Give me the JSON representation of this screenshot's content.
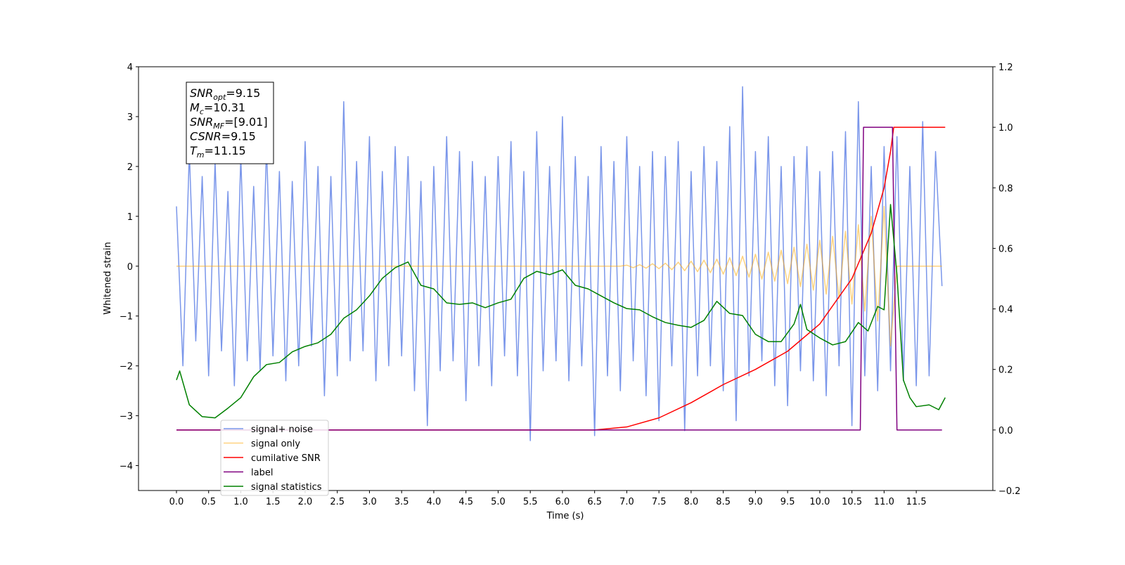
{
  "chart_data": {
    "type": "line",
    "x_label": "Time (s)",
    "y_label": "Whitened strain",
    "xlim": [
      -0.59,
      12.69
    ],
    "ylim": [
      -4.5,
      4
    ],
    "y2lim": [
      -0.2,
      1.2
    ],
    "xticks": [
      {
        "value": 0,
        "label": "0.0"
      },
      0.5,
      {
        "value": 1,
        "label": "1.0"
      },
      1.5,
      {
        "value": 2,
        "label": "2.0"
      },
      2.5,
      {
        "value": 3,
        "label": "3.0"
      },
      3.5,
      {
        "value": 4,
        "label": "4.0"
      },
      4.5,
      {
        "value": 5,
        "label": "5.0"
      },
      5.5,
      {
        "value": 6,
        "label": "6.0"
      },
      6.5,
      {
        "value": 7,
        "label": "7.0"
      },
      7.5,
      {
        "value": 8,
        "label": "8.0"
      },
      8.5,
      {
        "value": 9,
        "label": "9.0"
      },
      9.5,
      {
        "value": 10,
        "label": "10.0"
      },
      10.5,
      {
        "value": 11,
        "label": "11.0"
      },
      11.5
    ],
    "yticks": [
      {
        "value": -4,
        "label": "−4"
      },
      {
        "value": -3,
        "label": "−3"
      },
      {
        "value": -2,
        "label": "−2"
      },
      {
        "value": -1,
        "label": "−1"
      },
      0,
      1,
      2,
      3,
      4
    ],
    "y2ticks": [
      {
        "value": -0.2,
        "label": "−0.2"
      },
      {
        "value": 0,
        "label": "0.0"
      },
      0.2,
      0.4,
      0.6,
      0.8,
      {
        "value": 1,
        "label": "1.0"
      },
      1.2
    ],
    "legend_position": "lower left",
    "annotations": [
      {
        "symbol": "SNR",
        "sub": "opt",
        "text": "=9.15"
      },
      {
        "symbol": "M",
        "sub": "c",
        "text": "=10.31"
      },
      {
        "symbol": "SNR",
        "sub": "MF",
        "text": "=[9.01]"
      },
      {
        "symbol": "CSNR",
        "text": "=9.15"
      },
      {
        "symbol": "T",
        "sub": "m",
        "text": "=11.15"
      }
    ],
    "x": [
      0,
      0.1,
      0.2,
      0.3,
      0.4,
      0.5,
      0.6,
      0.7,
      0.8,
      0.9,
      1,
      1.1,
      1.2,
      1.3,
      1.4,
      1.5,
      1.6,
      1.7,
      1.8,
      1.9,
      2,
      2.1,
      2.2,
      2.3,
      2.4,
      2.5,
      2.6,
      2.7,
      2.8,
      2.9,
      3,
      3.1,
      3.2,
      3.3,
      3.4,
      3.5,
      3.6,
      3.7,
      3.8,
      3.9,
      4,
      4.1,
      4.2,
      4.3,
      4.4,
      4.5,
      4.6,
      4.7,
      4.8,
      4.9,
      5,
      5.1,
      5.2,
      5.3,
      5.4,
      5.5,
      5.6,
      5.7,
      5.8,
      5.9,
      6,
      6.1,
      6.2,
      6.3,
      6.4,
      6.5,
      6.6,
      6.7,
      6.8,
      6.9,
      7,
      7.1,
      7.2,
      7.3,
      7.4,
      7.5,
      7.6,
      7.7,
      7.8,
      7.9,
      8,
      8.1,
      8.2,
      8.3,
      8.4,
      8.5,
      8.6,
      8.7,
      8.8,
      8.9,
      9,
      9.1,
      9.2,
      9.3,
      9.4,
      9.5,
      9.6,
      9.7,
      9.8,
      9.9,
      10,
      10.1,
      10.2,
      10.3,
      10.4,
      10.5,
      10.6,
      10.7,
      10.8,
      10.9,
      11,
      11.1,
      11.2,
      11.3,
      11.4,
      11.5,
      11.6,
      11.7,
      11.8,
      11.9
    ],
    "series": [
      {
        "name": "signal+ noise",
        "color": "#4169e1",
        "alpha": 0.7,
        "values": [
          1.2,
          -2.0,
          2.3,
          -1.5,
          1.8,
          -2.2,
          2.1,
          -1.7,
          1.5,
          -2.4,
          2.2,
          -1.9,
          1.6,
          -2.1,
          2.4,
          -1.8,
          1.9,
          -2.3,
          1.7,
          -2.0,
          2.5,
          -1.6,
          2.0,
          -2.6,
          1.8,
          -2.2,
          3.3,
          -1.9,
          2.1,
          -1.7,
          2.6,
          -2.3,
          1.9,
          -2.0,
          2.4,
          -1.8,
          2.2,
          -2.5,
          1.7,
          -3.2,
          2.0,
          -2.1,
          2.6,
          -1.9,
          2.3,
          -2.7,
          2.1,
          -2.0,
          1.8,
          -2.4,
          2.2,
          -1.8,
          2.5,
          -2.2,
          1.9,
          -3.5,
          2.7,
          -2.1,
          2.0,
          -1.9,
          3.0,
          -2.3,
          2.2,
          -2.0,
          1.8,
          -3.4,
          2.4,
          -2.2,
          2.1,
          -2.5,
          2.6,
          -1.9,
          2.0,
          -2.6,
          2.3,
          -3.1,
          2.2,
          -2.0,
          2.5,
          -3.3,
          1.9,
          -2.2,
          2.4,
          -2.0,
          2.1,
          -2.5,
          2.8,
          -3.1,
          3.6,
          -2.2,
          2.3,
          -1.9,
          2.6,
          -2.4,
          2.0,
          -2.8,
          2.2,
          -2.1,
          2.4,
          -2.3,
          1.9,
          -2.6,
          2.3,
          -2.0,
          2.7,
          -3.2,
          3.3,
          -2.2,
          2.0,
          -2.5,
          2.4,
          -2.1,
          2.6,
          -2.3,
          2.0,
          -2.4,
          2.9,
          -2.2,
          2.3,
          -0.4
        ]
      },
      {
        "name": "signal only",
        "color": "#ffa500",
        "alpha": 0.5,
        "values": [
          0,
          0,
          0,
          0,
          0,
          0,
          0,
          0,
          0,
          0,
          0,
          0,
          0,
          0,
          0,
          0,
          0,
          0,
          0,
          0,
          0,
          0,
          0,
          0,
          0,
          0,
          0,
          0,
          0,
          0,
          0,
          0,
          0,
          0,
          0,
          0,
          0,
          0,
          0,
          0,
          0,
          0,
          0,
          0,
          0,
          0,
          0,
          0,
          0,
          0,
          0,
          0,
          0,
          0,
          0,
          0,
          0,
          0,
          0,
          0,
          0,
          0,
          0,
          0,
          0,
          0,
          0,
          0,
          0,
          0,
          0.02,
          -0.03,
          0.03,
          -0.04,
          0.05,
          -0.05,
          0.06,
          -0.07,
          0.08,
          -0.09,
          0.1,
          -0.11,
          0.12,
          -0.13,
          0.14,
          -0.16,
          0.17,
          -0.19,
          0.2,
          -0.22,
          0.24,
          -0.26,
          0.28,
          -0.3,
          0.32,
          -0.35,
          0.38,
          -0.41,
          0.44,
          -0.48,
          0.52,
          -0.56,
          0.6,
          -0.65,
          0.7,
          -0.76,
          0.83,
          -0.9,
          1.0,
          -1.1,
          1.2,
          -1.6,
          0,
          0,
          0,
          0,
          0,
          0,
          0,
          0
        ]
      },
      {
        "name": "cumilative SNR",
        "color": "#ff0000",
        "axis": "y2",
        "x": [
          0,
          6.5,
          7.0,
          7.5,
          8.0,
          8.5,
          9.0,
          9.5,
          10.0,
          10.5,
          10.8,
          11.0,
          11.1,
          11.15,
          11.95
        ],
        "values": [
          0,
          0,
          0.01,
          0.04,
          0.09,
          0.15,
          0.2,
          0.26,
          0.35,
          0.5,
          0.65,
          0.8,
          0.92,
          1.0,
          1.0
        ]
      },
      {
        "name": "label",
        "color": "#800080",
        "axis": "y2",
        "x": [
          0,
          10.63,
          10.68,
          11.13,
          11.2,
          11.9
        ],
        "values": [
          0,
          0,
          1,
          1,
          0,
          0
        ]
      },
      {
        "name": "signal statistics",
        "color": "#008000",
        "axis": "y2",
        "x": [
          0,
          0.05,
          0.2,
          0.4,
          0.6,
          0.8,
          1.0,
          1.2,
          1.4,
          1.6,
          1.8,
          2.0,
          2.2,
          2.4,
          2.6,
          2.8,
          3.0,
          3.2,
          3.4,
          3.6,
          3.8,
          4.0,
          4.2,
          4.4,
          4.6,
          4.8,
          5.0,
          5.2,
          5.4,
          5.6,
          5.8,
          6.0,
          6.2,
          6.4,
          6.6,
          6.8,
          7.0,
          7.2,
          7.4,
          7.6,
          7.8,
          8.0,
          8.2,
          8.4,
          8.6,
          8.8,
          9.0,
          9.2,
          9.4,
          9.6,
          9.7,
          9.8,
          10.0,
          10.2,
          10.4,
          10.6,
          10.75,
          10.9,
          11.0,
          11.1,
          11.2,
          11.3,
          11.4,
          11.5,
          11.7,
          11.85,
          11.95
        ],
        "values": [
          0.165,
          0.195,
          0.083,
          0.044,
          0.04,
          0.072,
          0.107,
          0.176,
          0.216,
          0.223,
          0.258,
          0.276,
          0.288,
          0.316,
          0.369,
          0.397,
          0.443,
          0.501,
          0.536,
          0.555,
          0.478,
          0.466,
          0.42,
          0.415,
          0.42,
          0.404,
          0.42,
          0.432,
          0.501,
          0.524,
          0.513,
          0.529,
          0.478,
          0.466,
          0.443,
          0.42,
          0.401,
          0.397,
          0.374,
          0.355,
          0.346,
          0.339,
          0.362,
          0.425,
          0.385,
          0.378,
          0.316,
          0.292,
          0.292,
          0.35,
          0.415,
          0.332,
          0.304,
          0.281,
          0.292,
          0.355,
          0.327,
          0.408,
          0.397,
          0.745,
          0.513,
          0.165,
          0.107,
          0.077,
          0.083,
          0.067,
          0.107
        ]
      }
    ]
  }
}
